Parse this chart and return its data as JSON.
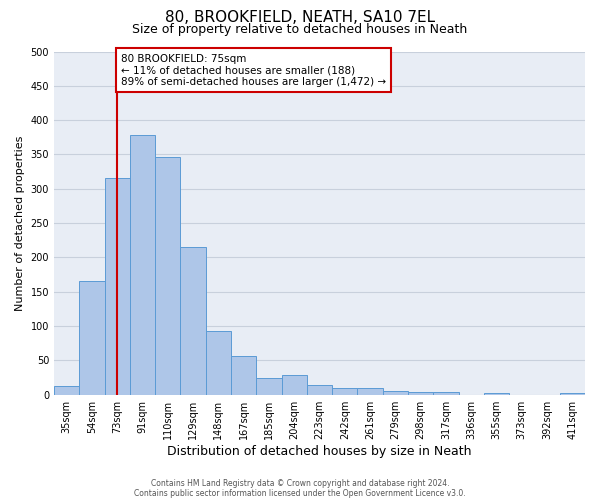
{
  "title": "80, BROOKFIELD, NEATH, SA10 7EL",
  "subtitle": "Size of property relative to detached houses in Neath",
  "xlabel": "Distribution of detached houses by size in Neath",
  "ylabel": "Number of detached properties",
  "categories": [
    "35sqm",
    "54sqm",
    "73sqm",
    "91sqm",
    "110sqm",
    "129sqm",
    "148sqm",
    "167sqm",
    "185sqm",
    "204sqm",
    "223sqm",
    "242sqm",
    "261sqm",
    "279sqm",
    "298sqm",
    "317sqm",
    "336sqm",
    "355sqm",
    "373sqm",
    "392sqm",
    "411sqm"
  ],
  "values": [
    13,
    165,
    315,
    378,
    346,
    215,
    93,
    56,
    25,
    29,
    14,
    10,
    10,
    6,
    4,
    4,
    0,
    3,
    0,
    0,
    3
  ],
  "bar_color": "#aec6e8",
  "bar_edge_color": "#5b9bd5",
  "vline_x_index": 2,
  "annotation_box_text": "80 BROOKFIELD: 75sqm\n← 11% of detached houses are smaller (188)\n89% of semi-detached houses are larger (1,472) →",
  "annotation_box_color": "#ffffff",
  "annotation_box_edge_color": "#cc0000",
  "vline_color": "#cc0000",
  "ylim": [
    0,
    500
  ],
  "yticks": [
    0,
    50,
    100,
    150,
    200,
    250,
    300,
    350,
    400,
    450,
    500
  ],
  "grid_color": "#c8d0dc",
  "background_color": "#e8edf5",
  "footer_line1": "Contains HM Land Registry data © Crown copyright and database right 2024.",
  "footer_line2": "Contains public sector information licensed under the Open Government Licence v3.0.",
  "title_fontsize": 11,
  "subtitle_fontsize": 9,
  "ylabel_fontsize": 8,
  "xlabel_fontsize": 9,
  "tick_fontsize": 7,
  "footer_fontsize": 5.5
}
